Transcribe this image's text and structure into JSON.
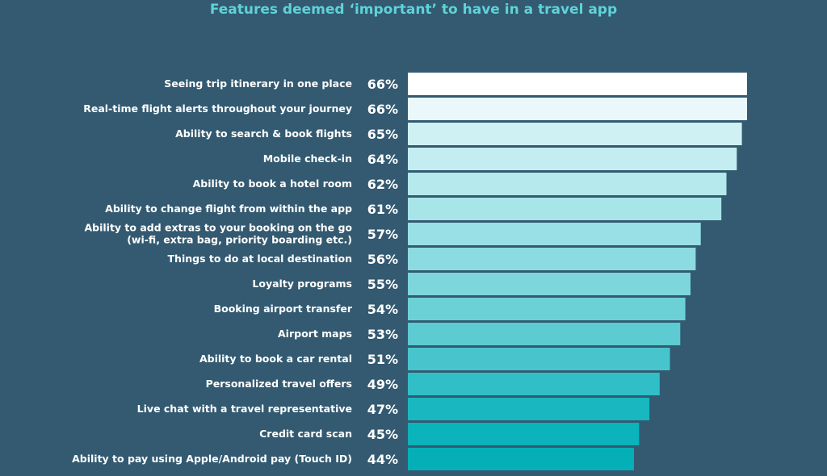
{
  "chart_data": {
    "type": "bar",
    "orientation": "horizontal",
    "title": "Features deemed ‘important’ to have in a travel app",
    "xlim": [
      0,
      66
    ],
    "grid": false,
    "categories": [
      [
        "Seeing trip itinerary in one place"
      ],
      [
        "Real-time flight alerts throughout your journey"
      ],
      [
        "Ability to search & book flights"
      ],
      [
        "Mobile check-in"
      ],
      [
        "Ability to book a hotel room"
      ],
      [
        "Ability to change flight from within the app"
      ],
      [
        "Ability to add extras to your booking on the go",
        "(wi-fi, extra bag, priority boarding etc.)"
      ],
      [
        "Things to do at local destination"
      ],
      [
        "Loyalty programs"
      ],
      [
        "Booking airport transfer"
      ],
      [
        "Airport maps"
      ],
      [
        "Ability to book a car rental"
      ],
      [
        "Personalized travel offers"
      ],
      [
        "Live chat with a travel representative"
      ],
      [
        "Credit card scan"
      ],
      [
        "Ability to pay using Apple/Android pay (Touch ID)"
      ]
    ],
    "values": [
      66,
      66,
      65,
      64,
      62,
      61,
      57,
      56,
      55,
      54,
      53,
      51,
      49,
      47,
      45,
      44
    ],
    "value_labels": [
      "66%",
      "66%",
      "65%",
      "64%",
      "62%",
      "61%",
      "57%",
      "56%",
      "55%",
      "54%",
      "53%",
      "51%",
      "49%",
      "47%",
      "45%",
      "44%"
    ],
    "bar_colors": [
      "#ffffff",
      "#eaf8fb",
      "#d0f1f4",
      "#c3edf1",
      "#b5e9ed",
      "#a8e5e9",
      "#98e0e5",
      "#8bdbe0",
      "#7dd6dc",
      "#6cd1d7",
      "#5ccbd2",
      "#48c5cc",
      "#30bfc7",
      "#19b8c0",
      "#0bb3bb",
      "#05afb7"
    ]
  }
}
